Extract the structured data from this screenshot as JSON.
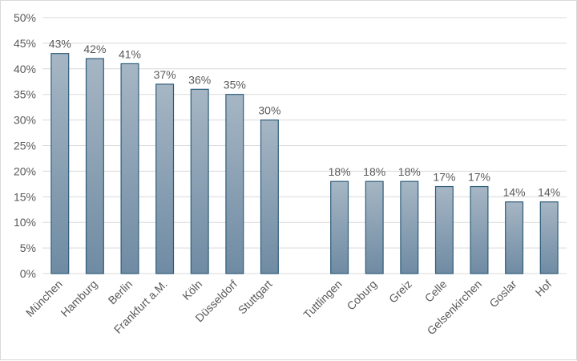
{
  "chart_data": {
    "type": "bar",
    "categories": [
      "München",
      "Hamburg",
      "Berlin",
      "Frankfurt a.M.",
      "Köln",
      "Düsseldorf",
      "Stuttgart",
      "",
      "Tuttlingen",
      "Coburg",
      "Greiz",
      "Celle",
      "Gelsenkirchen",
      "Goslar",
      "Hof"
    ],
    "values": [
      43,
      42,
      41,
      37,
      36,
      35,
      30,
      null,
      18,
      18,
      18,
      17,
      17,
      14,
      14
    ],
    "data_labels": [
      "43%",
      "42%",
      "41%",
      "37%",
      "36%",
      "35%",
      "30%",
      "",
      "18%",
      "18%",
      "18%",
      "17%",
      "17%",
      "14%",
      "14%"
    ],
    "y_ticks": [
      "0%",
      "5%",
      "10%",
      "15%",
      "20%",
      "25%",
      "30%",
      "35%",
      "40%",
      "45%",
      "50%"
    ],
    "ylim": [
      0,
      50
    ],
    "title": "",
    "xlabel": "",
    "ylabel": "",
    "grid": true,
    "colors": {
      "bar_top": "#a6b6c4",
      "bar_bottom": "#6f8ba3",
      "bar_edge": "#2e5d7a"
    }
  }
}
